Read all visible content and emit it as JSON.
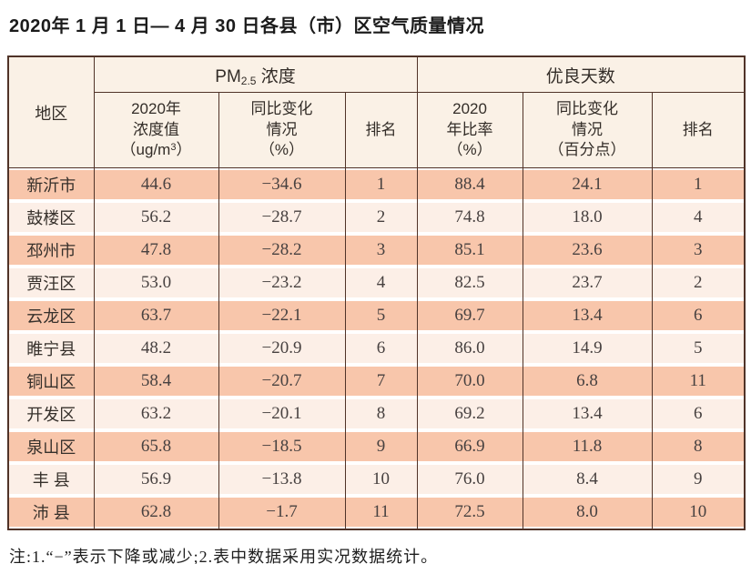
{
  "colors": {
    "row_stripe_dark": "#f8c6ab",
    "row_stripe_light": "#fcefe7",
    "header_bg": "#faf1e6",
    "grid_border": "#503328"
  },
  "chart_data": {
    "type": "table",
    "title": "2020年 1 月 1 日— 4 月 30 日各县（市）区空气质量情况",
    "footnote": "注:1.“−”表示下降或减少;2.表中数据采用实况数据统计。",
    "header": {
      "region": "地区",
      "pm_group": {
        "prefix": "PM",
        "subscript": "2.5",
        "suffix": " 浓度"
      },
      "good_group": "优良天数",
      "pm_value": {
        "line1": "2020年",
        "line2": "浓度值",
        "line3_prefix": "（ug/m",
        "line3_sup": "3",
        "line3_suffix": "）"
      },
      "pm_change": {
        "line1": "同比变化",
        "line2": "情况",
        "line3": "（%）"
      },
      "pm_rank": "排名",
      "good_rate": {
        "line1": "2020",
        "line2": "年比率",
        "line3": "（%）"
      },
      "good_change": {
        "line1": "同比变化",
        "line2": "情况",
        "line3": "（百分点）"
      },
      "good_rank": "排名"
    },
    "rows": [
      {
        "region": "新沂市",
        "pm_value": "44.6",
        "pm_change": "−34.6",
        "pm_rank": "1",
        "good_rate": "88.4",
        "good_change": "24.1",
        "good_rank": "1"
      },
      {
        "region": "鼓楼区",
        "pm_value": "56.2",
        "pm_change": "−28.7",
        "pm_rank": "2",
        "good_rate": "74.8",
        "good_change": "18.0",
        "good_rank": "4"
      },
      {
        "region": "邳州市",
        "pm_value": "47.8",
        "pm_change": "−28.2",
        "pm_rank": "3",
        "good_rate": "85.1",
        "good_change": "23.6",
        "good_rank": "3"
      },
      {
        "region": "贾汪区",
        "pm_value": "53.0",
        "pm_change": "−23.2",
        "pm_rank": "4",
        "good_rate": "82.5",
        "good_change": "23.7",
        "good_rank": "2"
      },
      {
        "region": "云龙区",
        "pm_value": "63.7",
        "pm_change": "−22.1",
        "pm_rank": "5",
        "good_rate": "69.7",
        "good_change": "13.4",
        "good_rank": "6"
      },
      {
        "region": "睢宁县",
        "pm_value": "48.2",
        "pm_change": "−20.9",
        "pm_rank": "6",
        "good_rate": "86.0",
        "good_change": "14.9",
        "good_rank": "5"
      },
      {
        "region": "铜山区",
        "pm_value": "58.4",
        "pm_change": "−20.7",
        "pm_rank": "7",
        "good_rate": "70.0",
        "good_change": "6.8",
        "good_rank": "11"
      },
      {
        "region": "开发区",
        "pm_value": "63.2",
        "pm_change": "−20.1",
        "pm_rank": "8",
        "good_rate": "69.2",
        "good_change": "13.4",
        "good_rank": "6"
      },
      {
        "region": "泉山区",
        "pm_value": "65.8",
        "pm_change": "−18.5",
        "pm_rank": "9",
        "good_rate": "66.9",
        "good_change": "11.8",
        "good_rank": "8"
      },
      {
        "region": "丰 县",
        "pm_value": "56.9",
        "pm_change": "−13.8",
        "pm_rank": "10",
        "good_rate": "76.0",
        "good_change": "8.4",
        "good_rank": "9"
      },
      {
        "region": "沛 县",
        "pm_value": "62.8",
        "pm_change": "−1.7",
        "pm_rank": "11",
        "good_rate": "72.5",
        "good_change": "8.0",
        "good_rank": "10"
      }
    ]
  }
}
